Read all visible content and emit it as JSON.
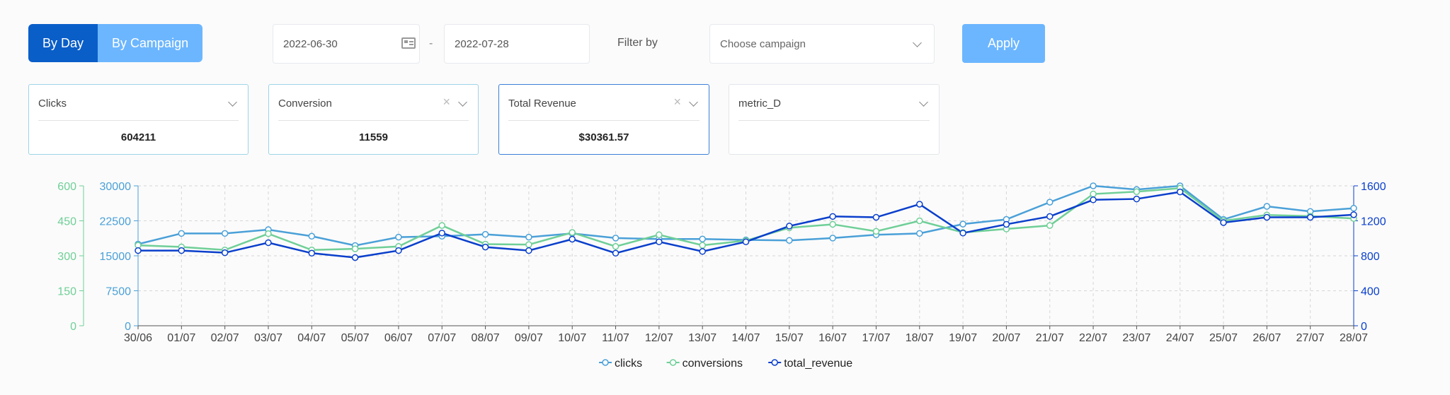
{
  "toolbar": {
    "view_tabs": [
      {
        "label": "By Day",
        "active": true
      },
      {
        "label": "By Campaign",
        "active": false
      }
    ],
    "start_date": "2022-06-30",
    "date_separator": "-",
    "end_date": "2022-07-28",
    "filter_label": "Filter by",
    "campaign_placeholder": "Choose campaign",
    "apply_label": "Apply"
  },
  "metric_cards": [
    {
      "label": "Clicks",
      "value": "604211"
    },
    {
      "label": "Conversion",
      "value": "11559",
      "clearable": true
    },
    {
      "label": "Total Revenue",
      "value": "$30361.57",
      "clearable": true
    },
    {
      "label": "metric_D",
      "value": ""
    }
  ],
  "colors": {
    "primary": "#0a5ec8",
    "secondary": "#6cb6ff",
    "clicks": "#4aa0d8",
    "conversions": "#6fcf97",
    "total_revenue": "#0a3fcc",
    "left_axis_1": "#6fcf97",
    "left_axis_2": "#4aa0d8",
    "right_axis": "#0a3fcc"
  },
  "icons": {
    "calendar": "calendar-icon",
    "dropdown": "chevron-down-icon",
    "clear": "close-icon"
  },
  "chart_data": {
    "type": "line",
    "x": [
      "30/06",
      "01/07",
      "02/07",
      "03/07",
      "04/07",
      "05/07",
      "06/07",
      "07/07",
      "08/07",
      "09/07",
      "10/07",
      "11/07",
      "12/07",
      "13/07",
      "14/07",
      "15/07",
      "16/07",
      "17/07",
      "18/07",
      "19/07",
      "20/07",
      "21/07",
      "22/07",
      "23/07",
      "24/07",
      "25/07",
      "26/07",
      "27/07",
      "28/07"
    ],
    "y_axes": {
      "conversions_axis": {
        "position": "left-outer",
        "ylim": [
          0,
          600
        ],
        "ticks": [
          0,
          150,
          300,
          450,
          600
        ]
      },
      "clicks_axis": {
        "position": "left-inner",
        "ylim": [
          0,
          30000
        ],
        "ticks": [
          0,
          7500,
          15000,
          22500,
          30000
        ]
      },
      "revenue_axis": {
        "position": "right",
        "ylim": [
          0,
          1600
        ],
        "ticks": [
          0,
          400,
          800,
          1200,
          1600
        ]
      }
    },
    "series": [
      {
        "name": "clicks",
        "axis": "clicks_axis",
        "values": [
          17500,
          19800,
          19800,
          20600,
          19200,
          17200,
          19000,
          19200,
          19600,
          19000,
          19800,
          18800,
          18600,
          18600,
          18400,
          18300,
          18800,
          19500,
          19800,
          21800,
          22800,
          26500,
          30000,
          29200,
          30000,
          22800,
          25600,
          24500,
          25200
        ]
      },
      {
        "name": "conversions",
        "axis": "conversions_axis",
        "values": [
          345,
          338,
          325,
          395,
          325,
          330,
          340,
          430,
          350,
          348,
          400,
          340,
          390,
          345,
          365,
          420,
          435,
          405,
          450,
          400,
          415,
          430,
          565,
          575,
          590,
          450,
          475,
          470,
          460
        ]
      },
      {
        "name": "total_revenue",
        "axis": "revenue_axis",
        "values": [
          860,
          860,
          835,
          950,
          830,
          780,
          860,
          1060,
          900,
          860,
          990,
          830,
          960,
          850,
          960,
          1140,
          1250,
          1240,
          1390,
          1060,
          1160,
          1250,
          1440,
          1450,
          1530,
          1180,
          1240,
          1240,
          1270
        ]
      }
    ],
    "grid": true,
    "legend_position": "bottom-center"
  }
}
